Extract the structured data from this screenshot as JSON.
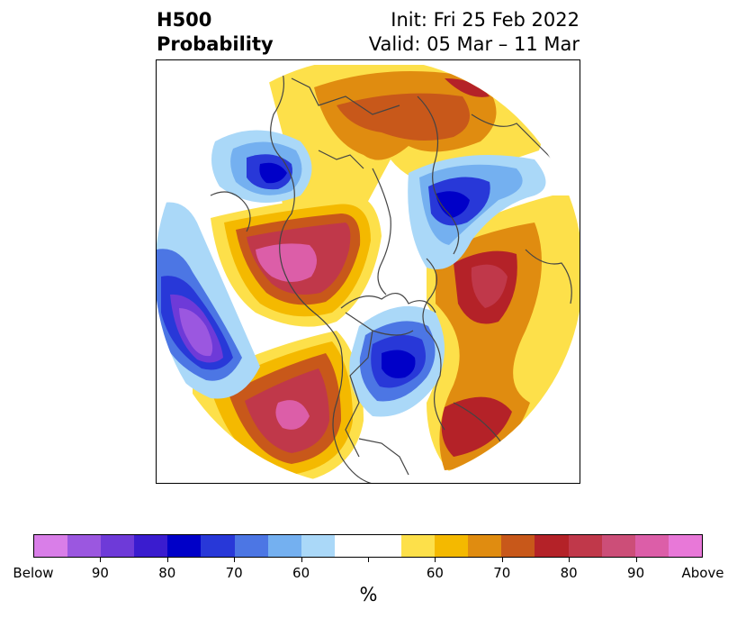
{
  "header": {
    "title_line1": "H500",
    "title_line2": "Probability",
    "init": "Init: Fri 25 Feb 2022",
    "valid": "Valid: 05 Mar – 11 Mar"
  },
  "colorbar": {
    "unit_label": "%",
    "colors": [
      "#d97ee8",
      "#9b57e0",
      "#6e3ad8",
      "#3a1ccf",
      "#0000c8",
      "#2838d8",
      "#4c76e4",
      "#74b0f0",
      "#aad8f8",
      "#ffffff",
      "#ffffff",
      "#fde04a",
      "#f4b900",
      "#e08c10",
      "#c8581a",
      "#b42228",
      "#c0384a",
      "#cc4e78",
      "#dc5ea8",
      "#e878d8"
    ],
    "tick_labels": [
      "Below",
      "90",
      "80",
      "70",
      "60",
      "",
      "60",
      "70",
      "80",
      "90",
      "Above"
    ]
  },
  "map": {
    "palette": {
      "above_60": "#fde04a",
      "above_65": "#f4b900",
      "above_70": "#e08c10",
      "above_75": "#c8581a",
      "above_80": "#b42228",
      "above_85": "#c0384a",
      "above_90": "#cc4e78",
      "above_95": "#dc5ea8",
      "below_60": "#aad8f8",
      "below_65": "#74b0f0",
      "below_70": "#4c76e4",
      "below_75": "#2838d8",
      "below_80": "#0000c8",
      "below_85": "#3a1ccf",
      "below_90": "#6e3ad8",
      "below_95": "#9b57e0",
      "coast": "#444444"
    }
  }
}
